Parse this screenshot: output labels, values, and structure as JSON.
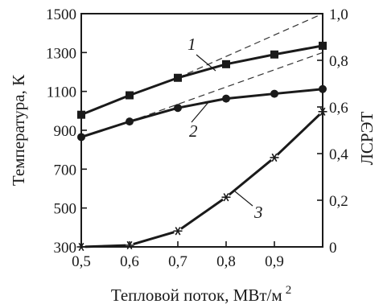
{
  "chart_data": {
    "type": "line",
    "xlabel": "Тепловой поток, МВт/м",
    "xlabel_superscript": "2",
    "ylabel_left": "Температура, К",
    "ylabel_right": "ЛСРЭТ",
    "xlim": [
      0.5,
      1.0
    ],
    "ylim_left": [
      300,
      1500
    ],
    "ylim_right": [
      0,
      1.0
    ],
    "x_ticks": [
      0.5,
      0.6,
      0.7,
      0.8,
      0.9
    ],
    "x_tick_labels": [
      "0,5",
      "0,6",
      "0,7",
      "0,8",
      "0,9"
    ],
    "y_left_ticks": [
      300,
      500,
      700,
      900,
      1100,
      1300,
      1500
    ],
    "y_left_tick_labels": [
      "300",
      "500",
      "700",
      "900",
      "1100",
      "1300",
      "1500"
    ],
    "y_right_ticks": [
      0,
      0.2,
      0.4,
      0.6,
      0.8,
      1.0
    ],
    "y_right_tick_labels": [
      "0",
      "0,2",
      "0,4",
      "0,6",
      "0,8",
      "1,0"
    ],
    "grid": false,
    "series": [
      {
        "id": "series-1",
        "name": "1",
        "axis": "left",
        "marker": "square",
        "x": [
          0.5,
          0.6,
          0.7,
          0.8,
          0.9,
          1.0
        ],
        "y": [
          980,
          1080,
          1170,
          1240,
          1290,
          1335
        ],
        "extrapolation": {
          "x": [
            0.7,
            1.0
          ],
          "y": [
            1170,
            1500
          ]
        }
      },
      {
        "id": "series-2",
        "name": "2",
        "axis": "left",
        "marker": "circle",
        "x": [
          0.5,
          0.6,
          0.7,
          0.8,
          0.9,
          1.0
        ],
        "y": [
          865,
          945,
          1015,
          1063,
          1088,
          1112
        ],
        "extrapolation": {
          "x": [
            0.6,
            1.0
          ],
          "y": [
            945,
            1300
          ]
        }
      },
      {
        "id": "series-3",
        "name": "3",
        "axis": "right",
        "marker": "star",
        "x": [
          0.5,
          0.6,
          0.7,
          0.8,
          0.9,
          1.0
        ],
        "y": [
          0.0,
          0.007,
          0.068,
          0.213,
          0.383,
          0.58
        ]
      }
    ],
    "annotations": [
      {
        "text": "1",
        "series": "series-1"
      },
      {
        "text": "2",
        "series": "series-2"
      },
      {
        "text": "3",
        "series": "series-3"
      }
    ]
  }
}
